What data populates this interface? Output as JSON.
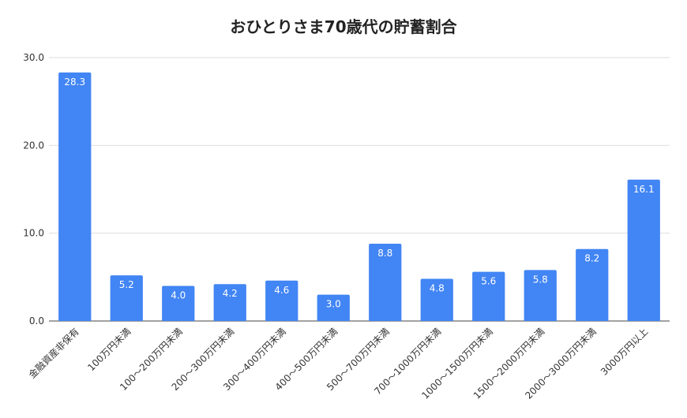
{
  "chart_data": {
    "type": "bar",
    "title": "おひとりさま70歳代の貯蓄割合",
    "xlabel": "",
    "ylabel": "",
    "categories": [
      "金融資産非保有",
      "100万円未満",
      "100～200万円未満",
      "200～300万円未満",
      "300～400万円未満",
      "400～500万円未満",
      "500～700万円未満",
      "700～1000万円未満",
      "1000～1500万円未満",
      "1500～2000万円未満",
      "2000～3000万円未満",
      "3000万円以上"
    ],
    "values": [
      28.3,
      5.2,
      4.0,
      4.2,
      4.6,
      3.0,
      8.8,
      4.8,
      5.6,
      5.8,
      8.2,
      16.1
    ],
    "data_labels": [
      "28.3",
      "5.2",
      "4.0",
      "4.2",
      "4.6",
      "3.0",
      "8.8",
      "4.8",
      "5.6",
      "5.8",
      "8.2",
      "16.1"
    ],
    "ylim": [
      0,
      30
    ],
    "yticks": [
      0,
      10,
      20,
      30
    ],
    "ytick_labels": [
      "0.0",
      "10.0",
      "20.0",
      "30.0"
    ],
    "grid": true,
    "legend": "none",
    "bar_color": "#4285F4"
  }
}
